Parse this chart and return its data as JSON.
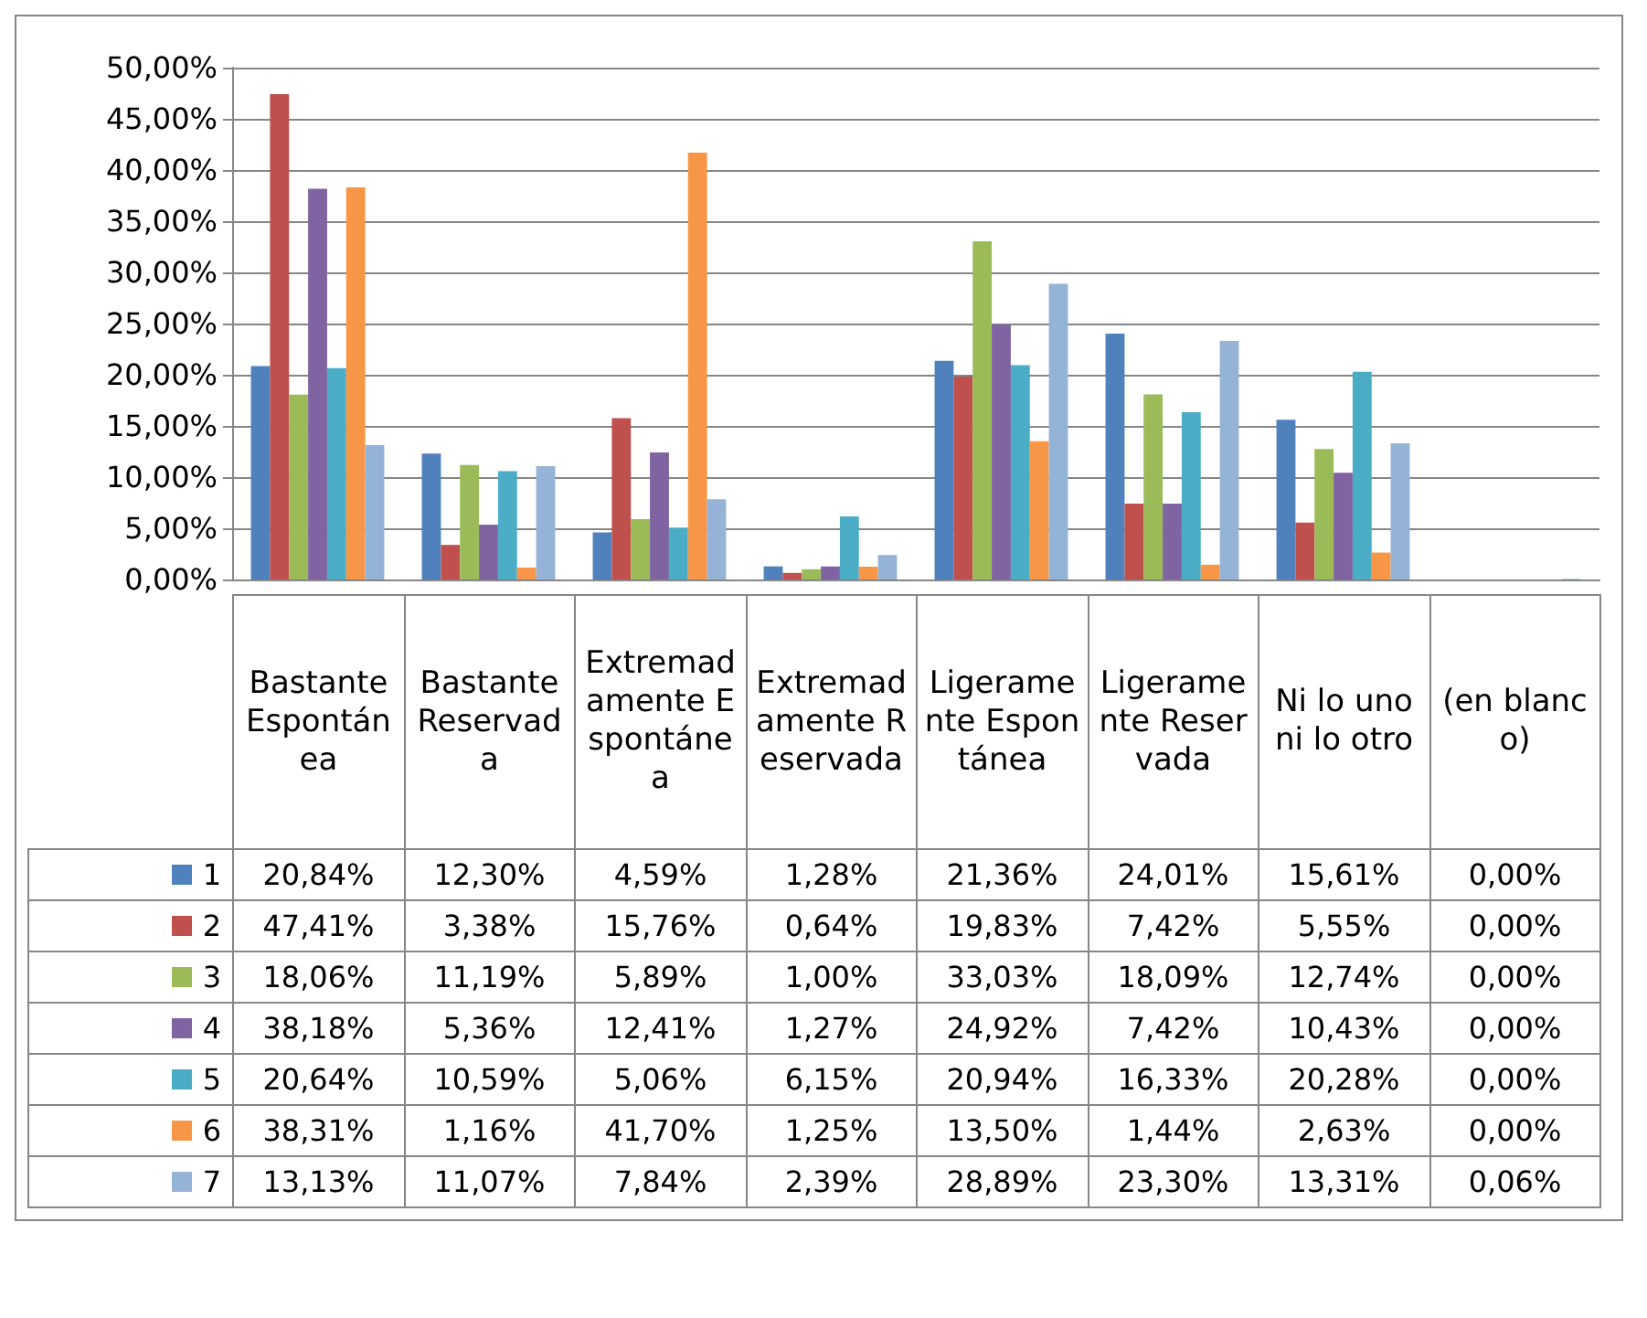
{
  "chart_data": {
    "type": "bar",
    "categories": [
      "Bastante Espontánea",
      "Bastante Reservada",
      "Extremadamente Espontánea",
      "Extremadamente Reservada",
      "Ligeramente Espontánea",
      "Ligeramente Reservada",
      "Ni lo uno ni lo otro",
      "(en blanco)"
    ],
    "series": [
      {
        "name": "1",
        "color": "#4f81bd",
        "values": [
          20.84,
          12.3,
          4.59,
          1.28,
          21.36,
          24.01,
          15.61,
          0.0
        ],
        "value_labels": [
          "20,84%",
          "12,30%",
          "4,59%",
          "1,28%",
          "21,36%",
          "24,01%",
          "15,61%",
          "0,00%"
        ]
      },
      {
        "name": "2",
        "color": "#c0504d",
        "values": [
          47.41,
          3.38,
          15.76,
          0.64,
          19.83,
          7.42,
          5.55,
          0.0
        ],
        "value_labels": [
          "47,41%",
          "3,38%",
          "15,76%",
          "0,64%",
          "19,83%",
          "7,42%",
          "5,55%",
          "0,00%"
        ]
      },
      {
        "name": "3",
        "color": "#9bbb59",
        "values": [
          18.06,
          11.19,
          5.89,
          1.0,
          33.03,
          18.09,
          12.74,
          0.0
        ],
        "value_labels": [
          "18,06%",
          "11,19%",
          "5,89%",
          "1,00%",
          "33,03%",
          "18,09%",
          "12,74%",
          "0,00%"
        ]
      },
      {
        "name": "4",
        "color": "#8064a2",
        "values": [
          38.18,
          5.36,
          12.41,
          1.27,
          24.92,
          7.42,
          10.43,
          0.0
        ],
        "value_labels": [
          "38,18%",
          "5,36%",
          "12,41%",
          "1,27%",
          "24,92%",
          "7,42%",
          "10,43%",
          "0,00%"
        ]
      },
      {
        "name": "5",
        "color": "#4bacc6",
        "values": [
          20.64,
          10.59,
          5.06,
          6.15,
          20.94,
          16.33,
          20.28,
          0.0
        ],
        "value_labels": [
          "20,64%",
          "10,59%",
          "5,06%",
          "6,15%",
          "20,94%",
          "16,33%",
          "20,28%",
          "0,00%"
        ]
      },
      {
        "name": "6",
        "color": "#f79646",
        "values": [
          38.31,
          1.16,
          41.7,
          1.25,
          13.5,
          1.44,
          2.63,
          0.0
        ],
        "value_labels": [
          "38,31%",
          "1,16%",
          "41,70%",
          "1,25%",
          "13,50%",
          "1,44%",
          "2,63%",
          "0,00%"
        ]
      },
      {
        "name": "7",
        "color": "#95b3d7",
        "values": [
          13.13,
          11.07,
          7.84,
          2.39,
          28.89,
          23.3,
          13.31,
          0.06
        ],
        "value_labels": [
          "13,13%",
          "11,07%",
          "7,84%",
          "2,39%",
          "28,89%",
          "23,30%",
          "13,31%",
          "0,06%"
        ]
      }
    ],
    "ylim": [
      0,
      50
    ],
    "yticks": [
      {
        "value": 0,
        "label": "0,00%"
      },
      {
        "value": 5,
        "label": "5,00%"
      },
      {
        "value": 10,
        "label": "10,00%"
      },
      {
        "value": 15,
        "label": "15,00%"
      },
      {
        "value": 20,
        "label": "20,00%"
      },
      {
        "value": 25,
        "label": "25,00%"
      },
      {
        "value": 30,
        "label": "30,00%"
      },
      {
        "value": 35,
        "label": "35,00%"
      },
      {
        "value": 40,
        "label": "40,00%"
      },
      {
        "value": 45,
        "label": "45,00%"
      },
      {
        "value": 50,
        "label": "50,00%"
      }
    ],
    "grid": "y",
    "legend": "bottom"
  }
}
